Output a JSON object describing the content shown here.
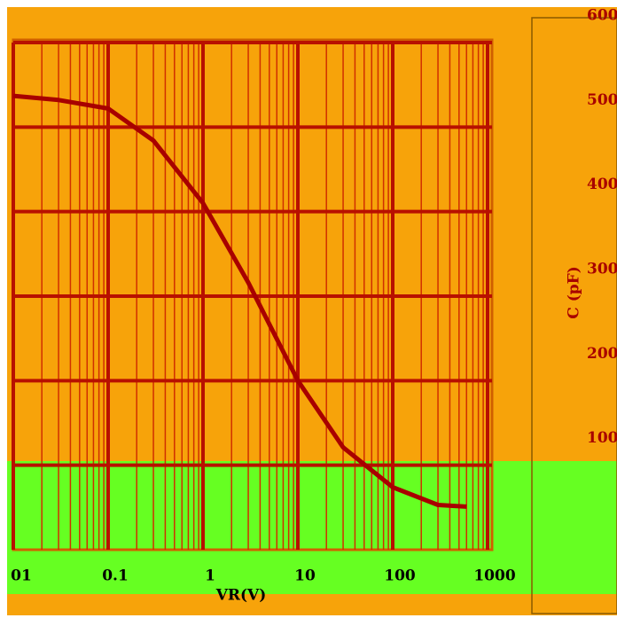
{
  "chart_data": {
    "type": "line",
    "x_label": "VR(V)",
    "y_label": "C (pF)",
    "x": [
      0.01,
      0.03,
      0.1,
      0.3,
      1,
      3,
      10,
      30,
      100,
      300,
      600
    ],
    "values": [
      537,
      532,
      522,
      484,
      410,
      316,
      200,
      121,
      74,
      53,
      51
    ],
    "color": "#a80000",
    "log_x": true,
    "xlim": [
      0.01,
      1000
    ],
    "xticks": [
      {
        "value": 0.01,
        "label": "01"
      },
      0.1,
      1,
      10,
      100,
      1000
    ],
    "ylim": [
      0,
      600
    ],
    "yticks": [
      100,
      200,
      300,
      400,
      500,
      600
    ],
    "grid": true
  }
}
